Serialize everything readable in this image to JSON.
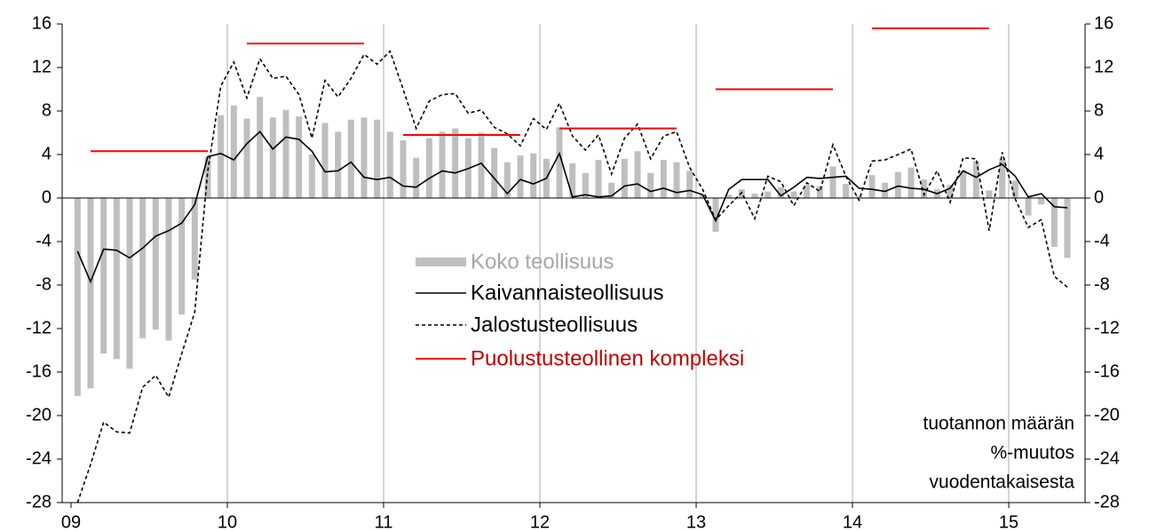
{
  "chart_data": {
    "type": "bar",
    "categories": [
      "09",
      null,
      null,
      null,
      null,
      null,
      null,
      null,
      null,
      null,
      null,
      null,
      "10",
      null,
      null,
      null,
      null,
      null,
      null,
      null,
      null,
      null,
      null,
      null,
      "11",
      null,
      null,
      null,
      null,
      null,
      null,
      null,
      null,
      null,
      null,
      null,
      "12",
      null,
      null,
      null,
      null,
      null,
      null,
      null,
      null,
      null,
      null,
      null,
      "13",
      null,
      null,
      null,
      null,
      null,
      null,
      null,
      null,
      null,
      null,
      null,
      "14",
      null,
      null,
      null,
      null,
      null,
      null,
      null,
      null,
      null,
      null,
      null,
      "15",
      null,
      null,
      null,
      null
    ],
    "series": [
      {
        "name": "Koko teollisuus",
        "color": "#bfbfbf",
        "kind": "bar",
        "values": [
          -18.2,
          -17.5,
          -14.3,
          -14.8,
          -15.7,
          -12.9,
          -12.1,
          -13.1,
          -10.7,
          -7.5,
          3.8,
          7.6,
          8.5,
          7.3,
          9.3,
          7.4,
          8.1,
          7.5,
          4.0,
          6.9,
          6.1,
          7.2,
          7.4,
          7.2,
          6.1,
          5.3,
          3.7,
          5.5,
          6.1,
          6.4,
          5.5,
          6.0,
          4.6,
          3.3,
          3.9,
          4.1,
          3.6,
          6.5,
          3.2,
          2.3,
          3.5,
          1.4,
          3.6,
          4.3,
          2.3,
          3.5,
          3.3,
          2.5,
          0.3,
          -3.1,
          0.3,
          0.8,
          0.4,
          0.6,
          1.0,
          0.6,
          1.2,
          1.1,
          2.9,
          1.3,
          0.2,
          2.1,
          1.4,
          2.4,
          2.8,
          1.7,
          0.8,
          1.2,
          2.5,
          3.4,
          0.7,
          3.6,
          1.6,
          -1.6,
          -0.6,
          -4.5,
          -5.5
        ]
      },
      {
        "name": "Kaivannaisteollisuus",
        "color": "#000000",
        "kind": "solid",
        "values": [
          -4.9,
          -7.7,
          -4.7,
          -4.8,
          -5.5,
          -4.6,
          -3.5,
          -3.0,
          -2.3,
          -0.6,
          3.8,
          4.1,
          3.5,
          5.0,
          6.1,
          4.5,
          5.6,
          5.4,
          4.3,
          2.4,
          2.5,
          3.3,
          1.9,
          1.7,
          1.9,
          1.1,
          1.0,
          1.8,
          2.5,
          2.3,
          2.7,
          3.2,
          1.8,
          0.4,
          1.7,
          1.3,
          1.8,
          4.1,
          0.1,
          0.3,
          0.1,
          0.2,
          1.1,
          1.3,
          0.6,
          0.9,
          0.5,
          0.7,
          0.3,
          -2.1,
          0.8,
          1.7,
          1.7,
          1.7,
          0.2,
          1.0,
          1.9,
          1.8,
          1.9,
          2.0,
          0.9,
          0.8,
          0.6,
          1.1,
          0.9,
          0.8,
          0.4,
          0.9,
          2.5,
          1.9,
          2.6,
          3.1,
          2.0,
          0.1,
          0.4,
          -0.8,
          -0.9
        ]
      },
      {
        "name": "Jalostusteollisuus",
        "color": "#000000",
        "kind": "dashed",
        "values": [
          -28,
          -24.5,
          -20.6,
          -21.5,
          -21.6,
          -17.4,
          -16.3,
          -18.3,
          -14.3,
          -10.5,
          2.5,
          10.3,
          12.5,
          9.2,
          12.8,
          11.0,
          11.2,
          9.5,
          5.5,
          10.8,
          9.3,
          11.0,
          13.2,
          12.3,
          13.5,
          10.0,
          6.4,
          8.9,
          9.5,
          9.6,
          7.8,
          8.1,
          6.5,
          5.9,
          4.8,
          7.3,
          6.3,
          8.7,
          5.7,
          4.4,
          5.8,
          2.2,
          5.5,
          6.8,
          3.6,
          5.7,
          6.1,
          2.8,
          0.8,
          -2.0,
          -0.7,
          0.5,
          -1.9,
          2.0,
          1.5,
          -0.7,
          1.4,
          0.6,
          4.9,
          2.0,
          -0.2,
          3.4,
          3.5,
          4.0,
          4.5,
          0.3,
          2.5,
          -0.4,
          3.7,
          3.6,
          -3.0,
          4.2,
          -0.1,
          -2.7,
          -2.0,
          -7.2,
          -8.2
        ]
      },
      {
        "name": "Puolustusteollinen kompleksi",
        "color": "#ff0000",
        "label_color": "#c00000",
        "kind": "solid",
        "values": [
          null,
          4.3,
          4.3,
          4.3,
          4.3,
          4.3,
          4.3,
          4.3,
          4.3,
          4.3,
          4.3,
          null,
          null,
          14.2,
          14.2,
          14.2,
          14.2,
          14.2,
          14.2,
          14.2,
          14.2,
          14.2,
          14.2,
          null,
          null,
          5.8,
          5.8,
          5.8,
          5.8,
          5.8,
          5.8,
          5.8,
          5.8,
          5.8,
          5.8,
          null,
          null,
          6.4,
          6.4,
          6.4,
          6.4,
          6.4,
          6.4,
          6.4,
          6.4,
          6.4,
          6.4,
          null,
          null,
          10.0,
          10.0,
          10.0,
          10.0,
          10.0,
          10.0,
          10.0,
          10.0,
          10.0,
          10.0,
          null,
          null,
          15.6,
          15.6,
          15.6,
          15.6,
          15.6,
          15.6,
          15.6,
          15.6,
          15.6,
          15.6,
          null,
          null,
          null,
          null,
          null,
          null
        ]
      }
    ],
    "ylim": [
      -28,
      16
    ],
    "yticks": [
      16,
      12,
      8,
      4,
      0,
      -4,
      -8,
      -12,
      -16,
      -20,
      -24,
      -28
    ],
    "y2lim": [
      -28,
      16
    ],
    "y2ticks": [
      16,
      12,
      8,
      4,
      0,
      -4,
      -8,
      -12,
      -16,
      -20,
      -24,
      -28
    ],
    "xgrid": true,
    "annotation": [
      "tuotannon määrän",
      "%-muutos",
      "vuodentakaisesta"
    ]
  }
}
